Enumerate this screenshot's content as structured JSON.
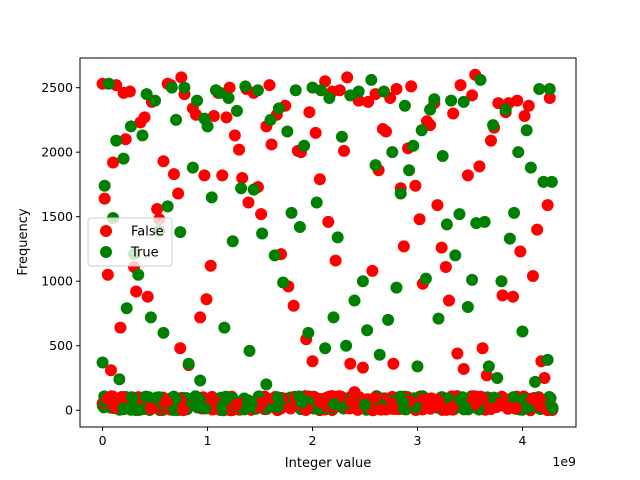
{
  "chart_data": {
    "type": "scatter",
    "xlabel": "Integer value",
    "ylabel": "Frequency",
    "x_offset_label": "1e9",
    "xlim": [
      -0.215,
      4.51
    ],
    "ylim": [
      -130,
      2730
    ],
    "x_ticks": [
      0,
      1,
      2,
      3,
      4
    ],
    "y_ticks": [
      0,
      500,
      1000,
      1500,
      2000,
      2500
    ],
    "legend": {
      "position": "center-left"
    },
    "grid": false,
    "series": [
      {
        "name": "False",
        "color": "#ff0000",
        "points": [
          [
            0.0,
            2530
          ],
          [
            0.02,
            1640
          ],
          [
            0.05,
            1050
          ],
          [
            0.08,
            310
          ],
          [
            0.1,
            1920
          ],
          [
            0.13,
            2520
          ],
          [
            0.17,
            640
          ],
          [
            0.2,
            2460
          ],
          [
            0.22,
            2100
          ],
          [
            0.26,
            2470
          ],
          [
            0.3,
            1110
          ],
          [
            0.32,
            920
          ],
          [
            0.36,
            2230
          ],
          [
            0.4,
            2270
          ],
          [
            0.43,
            880
          ],
          [
            0.47,
            2390
          ],
          [
            0.52,
            1560
          ],
          [
            0.54,
            1480
          ],
          [
            0.58,
            1930
          ],
          [
            0.62,
            2530
          ],
          [
            0.65,
            2520
          ],
          [
            0.68,
            1830
          ],
          [
            0.72,
            1680
          ],
          [
            0.74,
            480
          ],
          [
            0.75,
            2580
          ],
          [
            0.78,
            2450
          ],
          [
            0.82,
            350
          ],
          [
            0.86,
            2340
          ],
          [
            0.89,
            2290
          ],
          [
            0.93,
            720
          ],
          [
            0.97,
            1820
          ],
          [
            0.99,
            860
          ],
          [
            1.03,
            1120
          ],
          [
            1.06,
            2280
          ],
          [
            1.1,
            2460
          ],
          [
            1.14,
            1820
          ],
          [
            1.18,
            2270
          ],
          [
            1.21,
            2500
          ],
          [
            1.26,
            2130
          ],
          [
            1.3,
            2020
          ],
          [
            1.33,
            1800
          ],
          [
            1.37,
            2490
          ],
          [
            1.39,
            1610
          ],
          [
            1.44,
            2460
          ],
          [
            1.48,
            1730
          ],
          [
            1.51,
            1520
          ],
          [
            1.56,
            2200
          ],
          [
            1.59,
            2520
          ],
          [
            1.61,
            2060
          ],
          [
            1.66,
            2290
          ],
          [
            1.7,
            1210
          ],
          [
            1.74,
            2360
          ],
          [
            1.77,
            960
          ],
          [
            1.82,
            810
          ],
          [
            1.86,
            2010
          ],
          [
            1.89,
            2000
          ],
          [
            1.94,
            550
          ],
          [
            1.97,
            2310
          ],
          [
            2.0,
            380
          ],
          [
            2.03,
            2150
          ],
          [
            2.07,
            1790
          ],
          [
            2.12,
            2550
          ],
          [
            2.15,
            1460
          ],
          [
            2.19,
            2470
          ],
          [
            2.22,
            1160
          ],
          [
            2.26,
            2480
          ],
          [
            2.3,
            2010
          ],
          [
            2.33,
            2580
          ],
          [
            2.36,
            360
          ],
          [
            2.4,
            140
          ],
          [
            2.44,
            2400
          ],
          [
            2.48,
            330
          ],
          [
            2.53,
            2390
          ],
          [
            2.57,
            1080
          ],
          [
            2.6,
            2450
          ],
          [
            2.63,
            1860
          ],
          [
            2.67,
            2180
          ],
          [
            2.7,
            2160
          ],
          [
            2.74,
            2420
          ],
          [
            2.77,
            360
          ],
          [
            2.8,
            2490
          ],
          [
            2.84,
            1720
          ],
          [
            2.87,
            1270
          ],
          [
            2.91,
            2030
          ],
          [
            2.94,
            2510
          ],
          [
            2.98,
            1740
          ],
          [
            3.02,
            1480
          ],
          [
            3.05,
            980
          ],
          [
            3.09,
            2240
          ],
          [
            3.12,
            2210
          ],
          [
            3.16,
            2380
          ],
          [
            3.19,
            1590
          ],
          [
            3.23,
            1260
          ],
          [
            3.27,
            1110
          ],
          [
            3.3,
            850
          ],
          [
            3.34,
            2300
          ],
          [
            3.38,
            440
          ],
          [
            3.41,
            2520
          ],
          [
            3.44,
            320
          ],
          [
            3.48,
            1820
          ],
          [
            3.52,
            2440
          ],
          [
            3.55,
            2600
          ],
          [
            3.59,
            1890
          ],
          [
            3.62,
            480
          ],
          [
            3.66,
            270
          ],
          [
            3.7,
            2090
          ],
          [
            3.73,
            2190
          ],
          [
            3.77,
            2380
          ],
          [
            3.81,
            890
          ],
          [
            3.84,
            2310
          ],
          [
            3.87,
            2380
          ],
          [
            3.91,
            880
          ],
          [
            3.95,
            2400
          ],
          [
            3.98,
            1230
          ],
          [
            4.02,
            2280
          ],
          [
            4.06,
            2360
          ],
          [
            4.1,
            1040
          ],
          [
            4.14,
            1400
          ],
          [
            4.18,
            380
          ],
          [
            4.21,
            250
          ],
          [
            4.24,
            1590
          ],
          [
            4.26,
            2420
          ]
        ]
      },
      {
        "name": "True",
        "color": "#008000",
        "points": [
          [
            0.0,
            370
          ],
          [
            0.02,
            1740
          ],
          [
            0.06,
            2530
          ],
          [
            0.1,
            1490
          ],
          [
            0.13,
            2090
          ],
          [
            0.16,
            240
          ],
          [
            0.2,
            1950
          ],
          [
            0.23,
            790
          ],
          [
            0.27,
            2200
          ],
          [
            0.3,
            1210
          ],
          [
            0.34,
            1050
          ],
          [
            0.38,
            2130
          ],
          [
            0.42,
            2450
          ],
          [
            0.46,
            720
          ],
          [
            0.5,
            2400
          ],
          [
            0.54,
            1390
          ],
          [
            0.58,
            600
          ],
          [
            0.62,
            1580
          ],
          [
            0.66,
            2500
          ],
          [
            0.7,
            2250
          ],
          [
            0.74,
            1380
          ],
          [
            0.78,
            2500
          ],
          [
            0.82,
            360
          ],
          [
            0.86,
            1880
          ],
          [
            0.9,
            2400
          ],
          [
            0.93,
            230
          ],
          [
            0.97,
            2260
          ],
          [
            1.0,
            2200
          ],
          [
            1.04,
            1650
          ],
          [
            1.08,
            2480
          ],
          [
            1.12,
            2460
          ],
          [
            1.16,
            640
          ],
          [
            1.2,
            2420
          ],
          [
            1.24,
            1310
          ],
          [
            1.28,
            2320
          ],
          [
            1.32,
            1720
          ],
          [
            1.36,
            2510
          ],
          [
            1.4,
            460
          ],
          [
            1.44,
            1710
          ],
          [
            1.48,
            2480
          ],
          [
            1.52,
            1370
          ],
          [
            1.56,
            200
          ],
          [
            1.6,
            2250
          ],
          [
            1.64,
            1200
          ],
          [
            1.68,
            2340
          ],
          [
            1.72,
            990
          ],
          [
            1.76,
            2160
          ],
          [
            1.8,
            1530
          ],
          [
            1.84,
            2480
          ],
          [
            1.88,
            1420
          ],
          [
            1.92,
            2050
          ],
          [
            1.96,
            600
          ],
          [
            2.0,
            2500
          ],
          [
            2.04,
            1610
          ],
          [
            2.08,
            2480
          ],
          [
            2.12,
            480
          ],
          [
            2.16,
            2420
          ],
          [
            2.2,
            720
          ],
          [
            2.24,
            1340
          ],
          [
            2.28,
            2120
          ],
          [
            2.32,
            500
          ],
          [
            2.36,
            2440
          ],
          [
            2.4,
            850
          ],
          [
            2.44,
            2470
          ],
          [
            2.48,
            1000
          ],
          [
            2.52,
            620
          ],
          [
            2.56,
            2560
          ],
          [
            2.6,
            1900
          ],
          [
            2.64,
            430
          ],
          [
            2.68,
            2470
          ],
          [
            2.72,
            700
          ],
          [
            2.76,
            2000
          ],
          [
            2.8,
            950
          ],
          [
            2.84,
            1680
          ],
          [
            2.88,
            2360
          ],
          [
            2.92,
            1860
          ],
          [
            2.96,
            2050
          ],
          [
            3.0,
            340
          ],
          [
            3.04,
            2170
          ],
          [
            3.08,
            1020
          ],
          [
            3.12,
            2330
          ],
          [
            3.16,
            2410
          ],
          [
            3.2,
            710
          ],
          [
            3.24,
            1970
          ],
          [
            3.28,
            1440
          ],
          [
            3.32,
            2400
          ],
          [
            3.36,
            1200
          ],
          [
            3.4,
            1520
          ],
          [
            3.44,
            2390
          ],
          [
            3.48,
            800
          ],
          [
            3.52,
            1010
          ],
          [
            3.56,
            1450
          ],
          [
            3.6,
            2560
          ],
          [
            3.64,
            1460
          ],
          [
            3.68,
            340
          ],
          [
            3.72,
            2210
          ],
          [
            3.76,
            250
          ],
          [
            3.8,
            1000
          ],
          [
            3.84,
            2330
          ],
          [
            3.88,
            1330
          ],
          [
            3.92,
            1530
          ],
          [
            3.96,
            2000
          ],
          [
            4.0,
            610
          ],
          [
            4.04,
            2170
          ],
          [
            4.08,
            1880
          ],
          [
            4.12,
            220
          ],
          [
            4.16,
            2490
          ],
          [
            4.2,
            1770
          ],
          [
            4.24,
            390
          ],
          [
            4.26,
            2490
          ],
          [
            4.28,
            1770
          ]
        ]
      }
    ]
  }
}
